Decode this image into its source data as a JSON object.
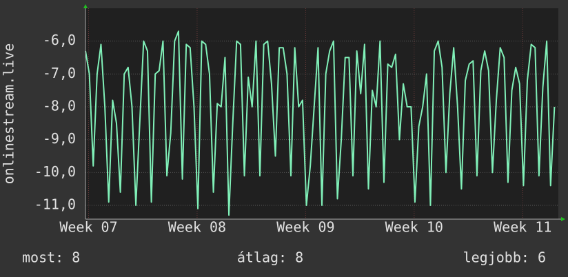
{
  "chart_data": {
    "type": "line",
    "y_label": "onlinestream.live",
    "x": [
      0,
      0.25,
      0.5,
      0.75,
      1,
      1.25,
      1.5,
      1.75,
      2,
      2.25,
      2.5,
      2.75,
      3,
      3.25,
      3.5,
      3.75,
      4,
      4.25,
      4.5,
      4.75,
      5,
      5.25,
      5.5,
      5.75,
      6,
      6.25,
      6.5,
      6.75,
      7,
      7.25,
      7.5,
      7.75,
      8,
      8.25,
      8.5,
      8.75,
      9,
      9.25,
      9.5,
      9.75,
      10,
      10.25,
      10.5,
      10.75,
      11,
      11.25,
      11.5,
      11.75,
      12,
      12.25,
      12.5,
      12.75,
      13,
      13.25,
      13.5,
      13.75,
      14,
      14.25,
      14.5,
      14.75,
      15,
      15.25,
      15.5,
      15.75,
      16,
      16.25,
      16.5,
      16.75,
      17,
      17.25,
      17.5,
      17.75,
      18,
      18.25,
      18.5,
      18.75,
      19,
      19.25,
      19.5,
      19.75,
      20,
      20.25,
      20.5,
      20.75,
      21,
      21.25,
      21.5,
      21.75,
      22,
      22.25,
      22.5,
      22.75,
      23,
      23.25,
      23.5,
      23.75,
      24,
      24.25,
      24.5,
      24.75,
      25,
      25.25,
      25.5,
      25.75,
      26,
      26.25,
      26.5,
      26.75,
      27,
      27.25,
      27.5,
      27.75,
      28,
      28.25,
      28.5,
      28.75,
      29,
      29.25,
      29.5,
      29.75,
      30,
      30.25
    ],
    "series": [
      {
        "name": "onlinestream.live",
        "color": "#80f0b8",
        "values": [
          -6.3,
          -7.0,
          -9.8,
          -7.0,
          -6.1,
          -8.0,
          -10.9,
          -7.8,
          -8.5,
          -10.6,
          -7.0,
          -6.8,
          -8.0,
          -11.0,
          -8.5,
          -6.0,
          -6.3,
          -10.9,
          -7.0,
          -6.9,
          -6.0,
          -10.1,
          -8.8,
          -6.0,
          -5.7,
          -10.2,
          -6.1,
          -6.2,
          -8.0,
          -11.1,
          -6.0,
          -6.1,
          -7.0,
          -10.6,
          -7.9,
          -8.0,
          -6.5,
          -11.3,
          -8.5,
          -6.0,
          -6.1,
          -10.1,
          -7.1,
          -8.0,
          -6.0,
          -10.1,
          -6.1,
          -6.0,
          -7.3,
          -9.5,
          -6.2,
          -6.2,
          -7.0,
          -10.1,
          -6.2,
          -8.0,
          -7.8,
          -11.0,
          -9.8,
          -8.0,
          -6.2,
          -11.0,
          -7.0,
          -6.3,
          -6.0,
          -10.8,
          -9.0,
          -6.5,
          -6.5,
          -10.1,
          -6.3,
          -7.6,
          -6.1,
          -10.5,
          -7.5,
          -8.0,
          -6.0,
          -10.3,
          -6.7,
          -6.8,
          -6.4,
          -9.0,
          -7.3,
          -8.0,
          -8.0,
          -10.9,
          -8.6,
          -8.0,
          -7.0,
          -11.0,
          -6.3,
          -6.0,
          -6.8,
          -10.0,
          -7.6,
          -6.2,
          -8.0,
          -10.5,
          -7.2,
          -6.7,
          -6.6,
          -10.1,
          -6.9,
          -6.3,
          -6.9,
          -10.0,
          -7.8,
          -6.2,
          -6.5,
          -10.3,
          -7.5,
          -6.8,
          -7.3,
          -10.4,
          -7.2,
          -6.1,
          -6.2,
          -10.1,
          -7.4,
          -6.0,
          -10.4,
          -8.0
        ]
      }
    ],
    "xlim": [
      0,
      30.5
    ],
    "xticks": [
      {
        "value": 0.2,
        "label": "Week 07"
      },
      {
        "value": 7.2,
        "label": "Week 08"
      },
      {
        "value": 14.2,
        "label": "Week 09"
      },
      {
        "value": 21.2,
        "label": "Week 10"
      },
      {
        "value": 28.2,
        "label": "Week 11"
      }
    ],
    "ylim": [
      -11.42,
      -5.0
    ],
    "yticks": [
      {
        "value": -6,
        "label": "-6,0"
      },
      {
        "value": -7,
        "label": "-7,0"
      },
      {
        "value": -8,
        "label": "-8,0"
      },
      {
        "value": -9,
        "label": "-9,0"
      },
      {
        "value": -10,
        "label": "-10,0"
      },
      {
        "value": -11,
        "label": "-11,0"
      }
    ],
    "grid": true,
    "footer": [
      "most: 8",
      "átlag: 8",
      "legjobb: 6"
    ]
  }
}
